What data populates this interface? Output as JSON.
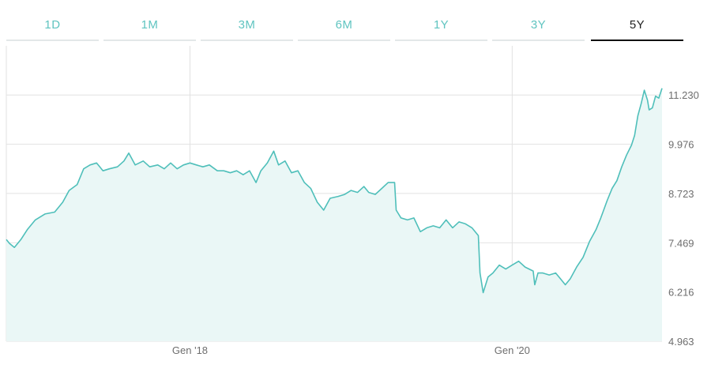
{
  "tabs": [
    {
      "label": "1D",
      "active": false
    },
    {
      "label": "1M",
      "active": false
    },
    {
      "label": "3M",
      "active": false
    },
    {
      "label": "6M",
      "active": false
    },
    {
      "label": "1Y",
      "active": false
    },
    {
      "label": "3Y",
      "active": false
    },
    {
      "label": "5Y",
      "active": true
    }
  ],
  "colors": {
    "line": "#4fbfba",
    "fill": "#eaf7f6",
    "grid": "#e2e2e2",
    "tab_inactive": "#5fc4c0",
    "tab_active": "#222222"
  },
  "chart_data": {
    "type": "area",
    "title": "",
    "xlabel": "",
    "ylabel": "",
    "y_axis_position": "right",
    "ylim": [
      4.963,
      11.23
    ],
    "ylim_top": 12.48,
    "y_ticks": [
      "4.963",
      "6.216",
      "7.469",
      "8.723",
      "9.976",
      "11.230"
    ],
    "x_ticks": [
      {
        "label": "Gen '18",
        "x": 2018.0
      },
      {
        "label": "Gen '20",
        "x": 2020.0
      }
    ],
    "xlim": [
      2016.86,
      2020.85
    ],
    "grid": true,
    "series": [
      {
        "points": [
          [
            2016.86,
            7.55
          ],
          [
            2016.88,
            7.45
          ],
          [
            2016.91,
            7.35
          ],
          [
            2016.95,
            7.55
          ],
          [
            2016.99,
            7.8
          ],
          [
            2017.04,
            8.05
          ],
          [
            2017.1,
            8.2
          ],
          [
            2017.16,
            8.25
          ],
          [
            2017.21,
            8.5
          ],
          [
            2017.25,
            8.8
          ],
          [
            2017.3,
            8.95
          ],
          [
            2017.34,
            9.35
          ],
          [
            2017.38,
            9.45
          ],
          [
            2017.42,
            9.5
          ],
          [
            2017.46,
            9.3
          ],
          [
            2017.5,
            9.35
          ],
          [
            2017.55,
            9.4
          ],
          [
            2017.59,
            9.55
          ],
          [
            2017.62,
            9.75
          ],
          [
            2017.66,
            9.45
          ],
          [
            2017.71,
            9.55
          ],
          [
            2017.75,
            9.4
          ],
          [
            2017.8,
            9.45
          ],
          [
            2017.84,
            9.35
          ],
          [
            2017.88,
            9.5
          ],
          [
            2017.92,
            9.35
          ],
          [
            2017.96,
            9.45
          ],
          [
            2018.0,
            9.5
          ],
          [
            2018.04,
            9.45
          ],
          [
            2018.08,
            9.4
          ],
          [
            2018.12,
            9.45
          ],
          [
            2018.17,
            9.3
          ],
          [
            2018.21,
            9.3
          ],
          [
            2018.25,
            9.25
          ],
          [
            2018.29,
            9.3
          ],
          [
            2018.33,
            9.2
          ],
          [
            2018.37,
            9.3
          ],
          [
            2018.41,
            9.0
          ],
          [
            2018.44,
            9.3
          ],
          [
            2018.48,
            9.5
          ],
          [
            2018.52,
            9.8
          ],
          [
            2018.55,
            9.45
          ],
          [
            2018.59,
            9.55
          ],
          [
            2018.63,
            9.25
          ],
          [
            2018.67,
            9.3
          ],
          [
            2018.71,
            9.0
          ],
          [
            2018.75,
            8.85
          ],
          [
            2018.79,
            8.5
          ],
          [
            2018.83,
            8.3
          ],
          [
            2018.87,
            8.6
          ],
          [
            2018.92,
            8.65
          ],
          [
            2018.96,
            8.7
          ],
          [
            2019.0,
            8.8
          ],
          [
            2019.04,
            8.75
          ],
          [
            2019.08,
            8.9
          ],
          [
            2019.11,
            8.75
          ],
          [
            2019.15,
            8.7
          ],
          [
            2019.19,
            8.85
          ],
          [
            2019.23,
            9.0
          ],
          [
            2019.27,
            9.0
          ],
          [
            2019.28,
            8.3
          ],
          [
            2019.31,
            8.1
          ],
          [
            2019.35,
            8.05
          ],
          [
            2019.39,
            8.1
          ],
          [
            2019.43,
            7.75
          ],
          [
            2019.47,
            7.85
          ],
          [
            2019.51,
            7.9
          ],
          [
            2019.55,
            7.85
          ],
          [
            2019.59,
            8.05
          ],
          [
            2019.63,
            7.85
          ],
          [
            2019.67,
            8.0
          ],
          [
            2019.71,
            7.95
          ],
          [
            2019.75,
            7.85
          ],
          [
            2019.79,
            7.65
          ],
          [
            2019.8,
            6.7
          ],
          [
            2019.82,
            6.2
          ],
          [
            2019.85,
            6.6
          ],
          [
            2019.88,
            6.7
          ],
          [
            2019.92,
            6.9
          ],
          [
            2019.96,
            6.8
          ],
          [
            2020.0,
            6.9
          ],
          [
            2020.04,
            7.0
          ],
          [
            2020.08,
            6.85
          ],
          [
            2020.13,
            6.75
          ],
          [
            2020.14,
            6.4
          ],
          [
            2020.16,
            6.7
          ],
          [
            2020.19,
            6.7
          ],
          [
            2020.23,
            6.65
          ],
          [
            2020.27,
            6.7
          ],
          [
            2020.3,
            6.55
          ],
          [
            2020.33,
            6.4
          ],
          [
            2020.36,
            6.55
          ],
          [
            2020.4,
            6.85
          ],
          [
            2020.44,
            7.1
          ],
          [
            2020.48,
            7.5
          ],
          [
            2020.52,
            7.8
          ],
          [
            2020.55,
            8.1
          ],
          [
            2020.59,
            8.55
          ],
          [
            2020.62,
            8.85
          ],
          [
            2020.65,
            9.05
          ],
          [
            2020.68,
            9.4
          ],
          [
            2020.71,
            9.7
          ],
          [
            2020.74,
            9.95
          ],
          [
            2020.76,
            10.2
          ],
          [
            2020.78,
            10.7
          ],
          [
            2020.8,
            11.0
          ],
          [
            2020.82,
            11.35
          ],
          [
            2020.84,
            11.1
          ],
          [
            2020.85,
            10.85
          ],
          [
            2020.87,
            10.9
          ],
          [
            2020.89,
            11.2
          ],
          [
            2020.91,
            11.15
          ],
          [
            2020.93,
            11.4
          ]
        ]
      }
    ]
  }
}
